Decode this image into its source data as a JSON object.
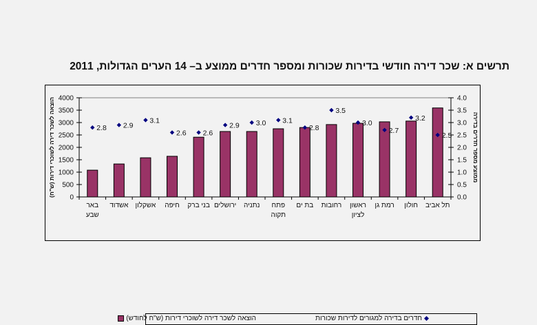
{
  "title": "תרשים א: שכר דירה חודשי בדירות שכורות ומספר חדרים ממוצע ב– 14 הערים הגדולות, 2011",
  "colors": {
    "bar": "#993366",
    "marker": "#000080",
    "background": "#f2f2f2"
  },
  "legend": {
    "bar_label": "הוצאה לשכר דירה לשוכרי דירות (ש\"ח לחודש)",
    "marker_label": "חדרים בדירה למגורים לדירות שכורות"
  },
  "chart_data": {
    "type": "bar",
    "title": "תרשים א: שכר דירה חודשי בדירות שכורות ומספר חדרים ממוצע ב– 14 הערים הגדולות, 2011",
    "categories": [
      [
        "באר",
        "שבע"
      ],
      [
        "אשדוד"
      ],
      [
        "אשקלון"
      ],
      [
        "חיפה"
      ],
      [
        "בני ברק"
      ],
      [
        "ירושלים"
      ],
      [
        "נתניה"
      ],
      [
        "פתח",
        "תקוה"
      ],
      [
        "בת ים"
      ],
      [
        "רחובות"
      ],
      [
        "ראשון",
        "לציון"
      ],
      [
        "רמת גן"
      ],
      [
        "חולון"
      ],
      [
        "תל אביב"
      ]
    ],
    "series": [
      {
        "name": "הוצאה לשכר דירה לשוכרי דירות (ש\"ח לחודש)",
        "type": "bar",
        "axis": "left",
        "values": [
          1080,
          1330,
          1580,
          1640,
          2410,
          2640,
          2640,
          2750,
          2800,
          2920,
          2970,
          3030,
          3060,
          3590
        ]
      },
      {
        "name": "חדרים בדירה למגורים לדירות שכורות",
        "type": "scatter",
        "axis": "right",
        "values": [
          2.8,
          2.9,
          3.1,
          2.6,
          2.6,
          2.9,
          3.0,
          3.1,
          2.8,
          3.5,
          3.0,
          2.7,
          3.2,
          2.5
        ],
        "labels": [
          "2.8",
          "2.9",
          "3.1",
          "2.6",
          "2.6",
          "2.9",
          "3.0",
          "3.1",
          "2.8",
          "3.5",
          "3.0",
          "2.7",
          "3.2",
          "2.5"
        ]
      }
    ],
    "ylabel": "הוצאה לשכר דירה לשוכרי דירות (ש\"ח)",
    "ylabel_right": "ממוצע מספר חדרים בדירה",
    "xlabel": "",
    "ylim": [
      0,
      4000
    ],
    "ylim_right": [
      0,
      4.0
    ],
    "yticks": [
      "0",
      "500",
      "1000",
      "1500",
      "2000",
      "2500",
      "3000",
      "3500",
      "4000"
    ],
    "yticks_right": [
      "0.0",
      "0.5",
      "1.0",
      "1.5",
      "2.0",
      "2.5",
      "3.0",
      "3.5",
      "4.0"
    ],
    "grid": false,
    "legend_position": "bottom"
  }
}
